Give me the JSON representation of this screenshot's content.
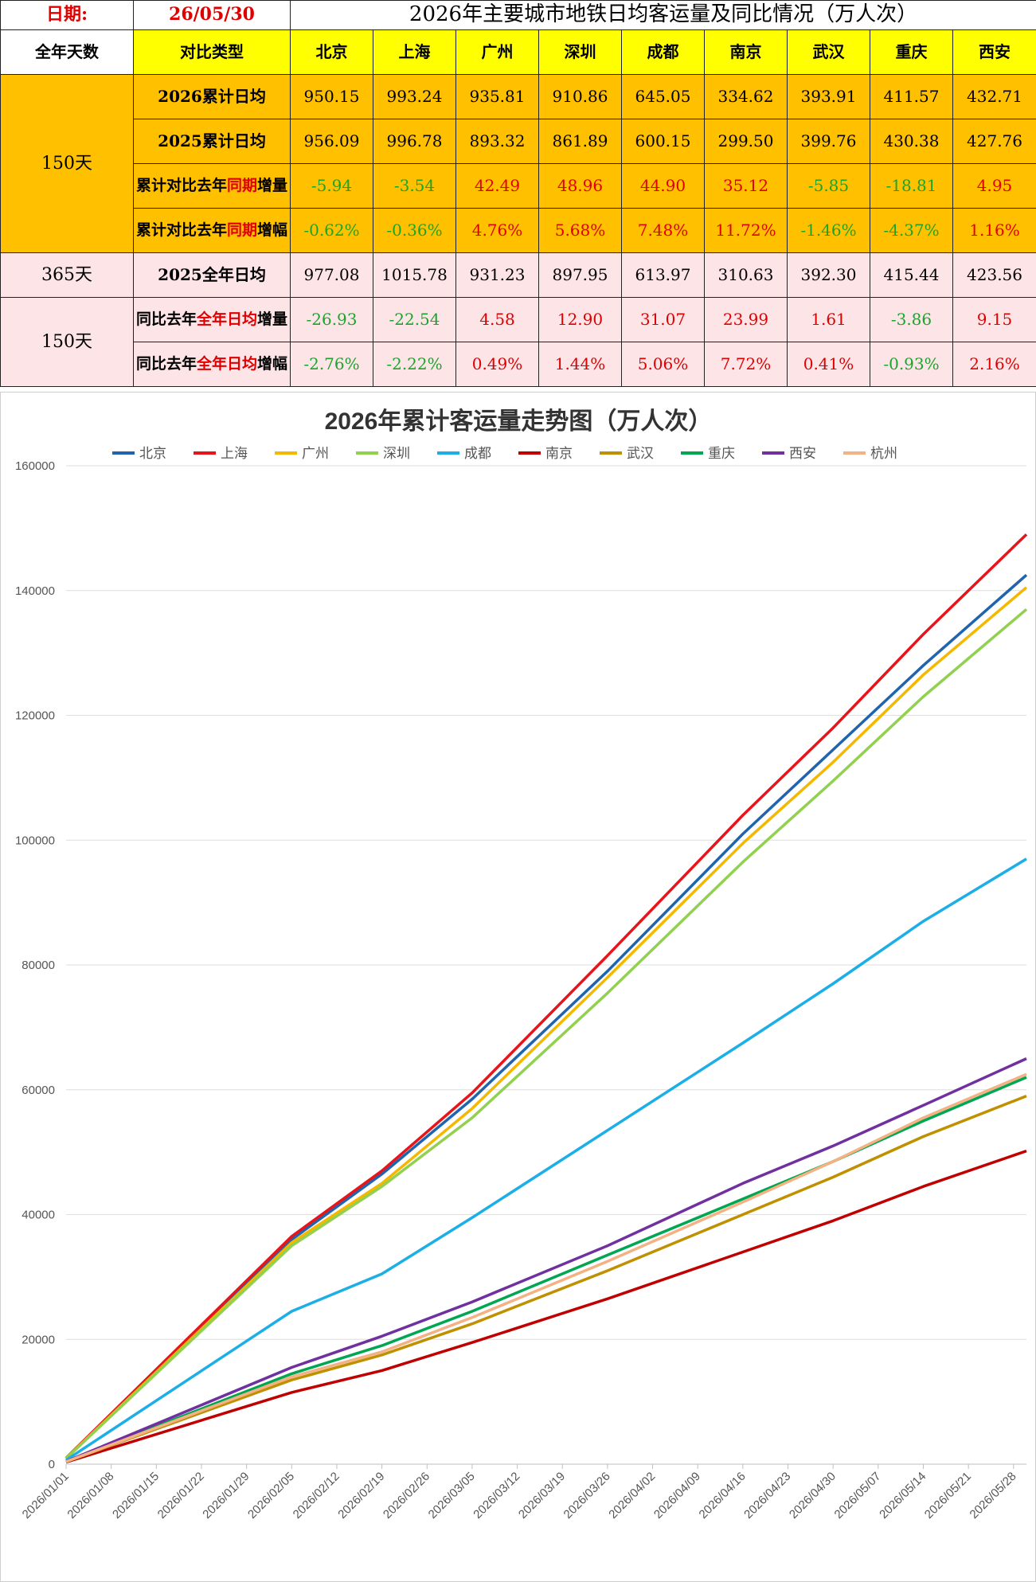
{
  "table": {
    "date_label": "日期:",
    "date_value": "26/05/30",
    "title": "2026年主要城市地铁日均客运量及同比情况（万人次）",
    "col_days": "全年天数",
    "col_type": "对比类型",
    "cities": [
      "北京",
      "上海",
      "广州",
      "深圳",
      "成都",
      "南京",
      "武汉",
      "重庆",
      "西安"
    ],
    "group1_days": "150天",
    "group2_days": "365天",
    "group3_days": "150天",
    "rows": [
      {
        "label": "2026累计日均",
        "values": [
          "950.15",
          "993.24",
          "935.81",
          "910.86",
          "645.05",
          "334.62",
          "393.91",
          "411.57",
          "432.71"
        ],
        "colors": [
          "k",
          "k",
          "k",
          "k",
          "k",
          "k",
          "k",
          "k",
          "k"
        ]
      },
      {
        "label": "2025累计日均",
        "values": [
          "956.09",
          "996.78",
          "893.32",
          "861.89",
          "600.15",
          "299.50",
          "399.76",
          "430.38",
          "427.76"
        ],
        "colors": [
          "k",
          "k",
          "k",
          "k",
          "k",
          "k",
          "k",
          "k",
          "k"
        ]
      },
      {
        "label_a": "累计对比去年",
        "label_hl": "同期",
        "label_b": "增量",
        "values": [
          "-5.94",
          "-3.54",
          "42.49",
          "48.96",
          "44.90",
          "35.12",
          "-5.85",
          "-18.81",
          "4.95"
        ],
        "colors": [
          "g",
          "g",
          "r",
          "r",
          "r",
          "r",
          "g",
          "g",
          "r"
        ]
      },
      {
        "label_a": "累计对比去年",
        "label_hl": "同期",
        "label_b": "增幅",
        "values": [
          "-0.62%",
          "-0.36%",
          "4.76%",
          "5.68%",
          "7.48%",
          "11.72%",
          "-1.46%",
          "-4.37%",
          "1.16%"
        ],
        "colors": [
          "g",
          "g",
          "r",
          "r",
          "r",
          "r",
          "g",
          "g",
          "r"
        ]
      },
      {
        "label": "2025全年日均",
        "values": [
          "977.08",
          "1015.78",
          "931.23",
          "897.95",
          "613.97",
          "310.63",
          "392.30",
          "415.44",
          "423.56"
        ],
        "colors": [
          "k",
          "k",
          "k",
          "k",
          "k",
          "k",
          "k",
          "k",
          "k"
        ]
      },
      {
        "label_a": "同比去年",
        "label_hl": "全年日均",
        "label_b": "增量",
        "values": [
          "-26.93",
          "-22.54",
          "4.58",
          "12.90",
          "31.07",
          "23.99",
          "1.61",
          "-3.86",
          "9.15"
        ],
        "colors": [
          "g",
          "g",
          "r",
          "r",
          "r",
          "r",
          "r",
          "g",
          "r"
        ]
      },
      {
        "label_a": "同比去年",
        "label_hl": "全年日均",
        "label_b": "增幅",
        "values": [
          "-2.76%",
          "-2.22%",
          "0.49%",
          "1.44%",
          "5.06%",
          "7.72%",
          "0.41%",
          "-0.93%",
          "2.16%"
        ],
        "colors": [
          "g",
          "g",
          "r",
          "r",
          "r",
          "r",
          "r",
          "g",
          "r"
        ]
      }
    ]
  },
  "chart_data": {
    "type": "line",
    "title": "2026年累计客运量走势图（万人次）",
    "x_tick_labels": [
      "2026/01/01",
      "2026/01/08",
      "2026/01/15",
      "2026/01/22",
      "2026/01/29",
      "2026/02/05",
      "2026/02/12",
      "2026/02/19",
      "2026/02/26",
      "2026/03/05",
      "2026/03/12",
      "2026/03/19",
      "2026/03/26",
      "2026/04/02",
      "2026/04/09",
      "2026/04/16",
      "2026/04/23",
      "2026/04/30",
      "2026/05/07",
      "2026/05/14",
      "2026/05/21",
      "2026/05/28"
    ],
    "x_range": [
      "2026/01/01",
      "2026/05/30"
    ],
    "ylim": [
      0,
      160000
    ],
    "y_ticks": [
      0,
      20000,
      40000,
      60000,
      80000,
      100000,
      120000,
      140000,
      160000
    ],
    "grid": "horizontal",
    "legend_position": "top",
    "series": [
      {
        "name": "北京",
        "color": "#1f64ad",
        "dates": [
          "2026/01/01",
          "2026/02/05",
          "2026/02/19",
          "2026/03/05",
          "2026/03/26",
          "2026/04/16",
          "2026/04/30",
          "2026/05/14",
          "2026/05/30"
        ],
        "values": [
          950,
          36000,
          46500,
          58500,
          79000,
          101000,
          114500,
          128000,
          142500
        ]
      },
      {
        "name": "上海",
        "color": "#e8141c",
        "dates": [
          "2026/01/01",
          "2026/02/05",
          "2026/02/19",
          "2026/03/05",
          "2026/03/26",
          "2026/04/16",
          "2026/04/30",
          "2026/05/14",
          "2026/05/30"
        ],
        "values": [
          990,
          36500,
          47000,
          59500,
          81500,
          104000,
          118000,
          133000,
          149000
        ]
      },
      {
        "name": "广州",
        "color": "#f5b800",
        "dates": [
          "2026/01/01",
          "2026/02/05",
          "2026/02/19",
          "2026/03/05",
          "2026/03/26",
          "2026/04/16",
          "2026/04/30",
          "2026/05/14",
          "2026/05/30"
        ],
        "values": [
          935,
          35500,
          45000,
          57000,
          78000,
          99500,
          112500,
          126500,
          140500
        ]
      },
      {
        "name": "深圳",
        "color": "#92d050",
        "dates": [
          "2026/01/01",
          "2026/02/05",
          "2026/02/19",
          "2026/03/05",
          "2026/03/26",
          "2026/04/16",
          "2026/04/30",
          "2026/05/14",
          "2026/05/30"
        ],
        "values": [
          910,
          35000,
          44500,
          55500,
          75500,
          96500,
          109500,
          123000,
          137000
        ]
      },
      {
        "name": "成都",
        "color": "#1caee6",
        "dates": [
          "2026/01/01",
          "2026/02/05",
          "2026/02/19",
          "2026/03/05",
          "2026/03/26",
          "2026/04/16",
          "2026/04/30",
          "2026/05/14",
          "2026/05/30"
        ],
        "values": [
          645,
          24500,
          30500,
          39500,
          53500,
          67500,
          77000,
          87000,
          97000
        ]
      },
      {
        "name": "南京",
        "color": "#c00000",
        "dates": [
          "2026/01/01",
          "2026/02/05",
          "2026/02/19",
          "2026/03/05",
          "2026/03/26",
          "2026/04/16",
          "2026/04/30",
          "2026/05/14",
          "2026/05/30"
        ],
        "values": [
          335,
          11500,
          15000,
          19500,
          26500,
          34000,
          39000,
          44500,
          50200
        ]
      },
      {
        "name": "武汉",
        "color": "#bf9000",
        "dates": [
          "2026/01/01",
          "2026/02/05",
          "2026/02/19",
          "2026/03/05",
          "2026/03/26",
          "2026/04/16",
          "2026/04/30",
          "2026/05/14",
          "2026/05/30"
        ],
        "values": [
          394,
          13500,
          17500,
          22500,
          31000,
          40000,
          46000,
          52500,
          59000
        ]
      },
      {
        "name": "重庆",
        "color": "#00a651",
        "dates": [
          "2026/01/01",
          "2026/02/05",
          "2026/02/19",
          "2026/03/05",
          "2026/03/26",
          "2026/04/16",
          "2026/04/30",
          "2026/05/14",
          "2026/05/30"
        ],
        "values": [
          412,
          14500,
          19000,
          24500,
          33500,
          42500,
          48500,
          55000,
          62000
        ]
      },
      {
        "name": "西安",
        "color": "#7030a0",
        "dates": [
          "2026/01/01",
          "2026/02/05",
          "2026/02/19",
          "2026/03/05",
          "2026/03/26",
          "2026/04/16",
          "2026/04/30",
          "2026/05/14",
          "2026/05/30"
        ],
        "values": [
          433,
          15500,
          20500,
          26000,
          35000,
          45000,
          51000,
          57500,
          65000
        ]
      },
      {
        "name": "杭州",
        "color": "#f4b183",
        "dates": [
          "2026/01/01",
          "2026/02/05",
          "2026/02/19",
          "2026/03/05",
          "2026/03/26",
          "2026/04/16",
          "2026/04/30",
          "2026/05/14",
          "2026/05/30"
        ],
        "values": [
          400,
          14000,
          18000,
          23500,
          32500,
          42000,
          48500,
          55500,
          62500
        ]
      }
    ]
  }
}
